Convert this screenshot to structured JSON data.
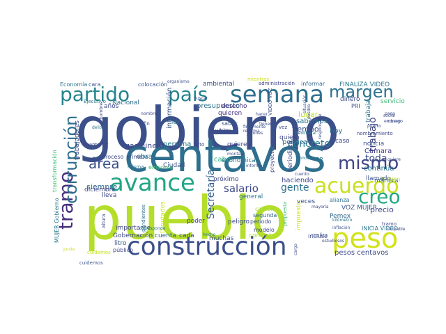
{
  "word_cloud": {
    "words": [
      {
        "text": "gobierno",
        "color": "#3b4f8a"
      },
      {
        "text": "pueblo",
        "color": "#b5de2b"
      },
      {
        "text": "centavos",
        "color": "#2e6e8e"
      },
      {
        "text": "construcción",
        "color": "#3b4f8a"
      },
      {
        "text": "peso",
        "color": "#d2e21b"
      },
      {
        "text": "semana",
        "color": "#2e6e8e"
      },
      {
        "text": "avance",
        "color": "#21a585"
      },
      {
        "text": "acuerdo",
        "color": "#c8e020"
      },
      {
        "text": "partido",
        "color": "#25858e"
      },
      {
        "text": "país",
        "color": "#25848e"
      },
      {
        "text": "margen",
        "color": "#2c718e"
      },
      {
        "text": "mismo",
        "color": "#404387"
      },
      {
        "text": "creo",
        "color": "#22a884"
      },
      {
        "text": "tramo",
        "color": "#472f7d"
      },
      {
        "text": "corrupción",
        "color": "#2e6e8e"
      },
      {
        "text": "área",
        "color": "#3b518b"
      },
      {
        "text": "salario",
        "color": "#3e4a89"
      },
      {
        "text": "gente",
        "color": "#2c728e"
      },
      {
        "text": "trabajo",
        "color": "#3f4788"
      },
      {
        "text": "toda",
        "color": "#3c4f8a"
      },
      {
        "text": "concreto",
        "color": "#26818e"
      },
      {
        "text": "Secretaría",
        "color": "#34608d"
      },
      {
        "text": "tiempo",
        "color": "#3b528b"
      },
      {
        "text": "sabemos",
        "color": "#2a768e"
      },
      {
        "text": "lugar",
        "color": "#c0df25"
      },
      {
        "text": "siempre",
        "color": "#2f6b8e"
      },
      {
        "text": "información",
        "color": "#38598c"
      },
      {
        "text": "presupuesto",
        "color": "#2c728e"
      },
      {
        "text": "derecho",
        "color": "#46327e"
      },
      {
        "text": "quieren",
        "color": "#453581"
      },
      {
        "text": "Nacional",
        "color": "#2d708e"
      },
      {
        "text": "gasolinera",
        "color": "#3e4989"
      },
      {
        "text": "persona",
        "color": "#2a778e"
      },
      {
        "text": "política",
        "color": "#31688e"
      },
      {
        "text": "caso",
        "color": "#3f4788"
      },
      {
        "text": "noticia",
        "color": "#3b528b"
      },
      {
        "text": "Cámara",
        "color": "#433e85"
      },
      {
        "text": "continúa",
        "color": "#2a778e"
      },
      {
        "text": "manera",
        "color": "#2c728e"
      },
      {
        "text": "haciendo",
        "color": "#3f4788"
      },
      {
        "text": "pesos centavos",
        "color": "#3e4989"
      },
      {
        "text": "precio",
        "color": "#3f4788"
      },
      {
        "text": "VOZ MUJER",
        "color": "#3a548c"
      },
      {
        "text": "Pemex",
        "color": "#31668e"
      },
      {
        "text": "muchas",
        "color": "#3a538b"
      },
      {
        "text": "contrato",
        "color": "#b2dd2d"
      },
      {
        "text": "Gobernación",
        "color": "#3e4989"
      },
      {
        "text": "cuenta",
        "color": "#31688e"
      },
      {
        "text": "cada",
        "color": "#3e4a89"
      },
      {
        "text": "poder",
        "color": "#3f4788"
      },
      {
        "text": "importante",
        "color": "#3f4889"
      },
      {
        "text": "litro",
        "color": "#38598c"
      },
      {
        "text": "público",
        "color": "#3e4989"
      },
      {
        "text": "cuidemos",
        "color": "#c2df23"
      },
      {
        "text": "diciembre",
        "color": "#3e4a89"
      },
      {
        "text": "Ciudad",
        "color": "#3b528b"
      },
      {
        "text": "misma",
        "color": "#2c728e"
      },
      {
        "text": "económica",
        "color": "#2a778e"
      },
      {
        "text": "próximo",
        "color": "#3f4788"
      },
      {
        "text": "cabo",
        "color": "#28ae80"
      },
      {
        "text": "general",
        "color": "#2a788e"
      },
      {
        "text": "periodo",
        "color": "#3b528b"
      },
      {
        "text": "modelo",
        "color": "#3e4a89"
      },
      {
        "text": "segunda",
        "color": "#31688e"
      },
      {
        "text": "peligro",
        "color": "#3e4a89"
      },
      {
        "text": "cambio",
        "color": "#a8db34"
      },
      {
        "text": "impuesto",
        "color": "#cfe11c"
      },
      {
        "text": "incluso",
        "color": "#3f4788"
      },
      {
        "text": "alianza",
        "color": "#2c718e"
      },
      {
        "text": "mayoría",
        "color": "#3e4a89"
      },
      {
        "text": "kilómetro",
        "color": "#2a768e"
      },
      {
        "text": "hoy",
        "color": "#2e6e8e"
      },
      {
        "text": "nombramiento",
        "color": "#3e4a89"
      },
      {
        "text": "llamado",
        "color": "#3b528b"
      },
      {
        "text": "bien",
        "color": "#c2df23"
      },
      {
        "text": "FINALIZA VIDEO",
        "color": "#2a788e"
      },
      {
        "text": "INICIA VIDEO",
        "color": "#2a788e"
      },
      {
        "text": "servicio",
        "color": "#3ebc74"
      },
      {
        "text": "dinero",
        "color": "#3e4a89"
      },
      {
        "text": "PRI",
        "color": "#3e4a89"
      },
      {
        "text": "informar",
        "color": "#31688e"
      },
      {
        "text": "administración",
        "color": "#3f4788"
      },
      {
        "text": "ambiental",
        "color": "#3b528b"
      },
      {
        "text": "colocación",
        "color": "#3a548c"
      },
      {
        "text": "Economía",
        "color": "#2a788e"
      },
      {
        "text": "cara",
        "color": "#3b528b"
      },
      {
        "text": "años",
        "color": "#3e4a89"
      },
      {
        "text": "trabajadores",
        "color": "#3e4a89"
      },
      {
        "text": "ley",
        "color": "#2a788e"
      },
      {
        "text": "fin",
        "color": "#3b528b"
      },
      {
        "text": "nueva",
        "color": "#3e4a89"
      },
      {
        "text": "saber",
        "color": "#3b528b"
      },
      {
        "text": "hizo",
        "color": "#3e4a89"
      },
      {
        "text": "vez",
        "color": "#3f4788"
      },
      {
        "text": "quiero",
        "color": "#3e4a89"
      },
      {
        "text": "obra",
        "color": "#2c718e"
      },
      {
        "text": "empresa",
        "color": "#3ebc74"
      },
      {
        "text": "proceso",
        "color": "#3e4a89"
      },
      {
        "text": "primera",
        "color": "#3b528b"
      },
      {
        "text": "lleva",
        "color": "#3f4788"
      },
      {
        "text": "altura",
        "color": "#3e4a89"
      },
      {
        "text": "pendientes",
        "color": "#2c718e"
      },
      {
        "text": "Diputados",
        "color": "#cfe11c"
      },
      {
        "text": "trabaja",
        "color": "#2a788e"
      },
      {
        "text": "quieren",
        "color": "#3f4788"
      },
      {
        "text": "tramo",
        "color": "#3e4a89"
      },
      {
        "text": "veces",
        "color": "#3b528b"
      },
      {
        "text": "proyecto",
        "color": "#3e4a89"
      },
      {
        "text": "realiza",
        "color": "#3b528b"
      },
      {
        "text": "periodista",
        "color": "#3e4a89"
      },
      {
        "text": "MUJER Gobierno",
        "color": "#2a788e"
      },
      {
        "text": "transformación",
        "color": "#3ebc74"
      },
      {
        "text": "cuidemos",
        "color": "#3b528b"
      },
      {
        "text": "mantener",
        "color": "#3e4a89"
      },
      {
        "text": "Ejecutivo",
        "color": "#2a788e"
      },
      {
        "text": "puerto",
        "color": "#3e4a89"
      },
      {
        "text": "social",
        "color": "#3b528b"
      },
      {
        "text": "embargo",
        "color": "#3e4a89"
      },
      {
        "text": "inflación",
        "color": "#3b528b"
      },
      {
        "text": "estudiosos",
        "color": "#3e4a89"
      },
      {
        "text": "conocer",
        "color": "#2a788e"
      },
      {
        "text": "buscar",
        "color": "#3b528b"
      },
      {
        "text": "reforma",
        "color": "#3e4a89"
      },
      {
        "text": "finalmente",
        "color": "#3b528b"
      },
      {
        "text": "jóvenes",
        "color": "#3e4a89"
      },
      {
        "text": "neoliberal",
        "color": "#2a788e"
      },
      {
        "text": "alto",
        "color": "#3e4a89"
      },
      {
        "text": "informe",
        "color": "#3b528b"
      },
      {
        "text": "cuento",
        "color": "#3e4a89"
      },
      {
        "text": "delito",
        "color": "#2a788e"
      },
      {
        "text": "organismo",
        "color": "#3b528b"
      },
      {
        "text": "pago",
        "color": "#3e4a89"
      },
      {
        "text": "correo",
        "color": "#3b528b"
      },
      {
        "text": "poste",
        "color": "#cfe11c"
      },
      {
        "text": "culpable",
        "color": "#3e4a89"
      },
      {
        "text": "corresponde",
        "color": "#2a788e"
      },
      {
        "text": "montaje",
        "color": "#3b528b"
      },
      {
        "text": "responsable",
        "color": "#3e4a89"
      },
      {
        "text": "posible",
        "color": "#3b528b"
      },
      {
        "text": "hombre",
        "color": "#3e4a89"
      },
      {
        "text": "mientras",
        "color": "#cfe11c"
      },
      {
        "text": "propuesta",
        "color": "#3ebc74"
      },
      {
        "text": "hecho",
        "color": "#2a788e"
      },
      {
        "text": "cargo",
        "color": "#3e4a89"
      },
      {
        "text": "situación",
        "color": "#3b528b"
      },
      {
        "text": "hacer",
        "color": "#3e4a89"
      },
      {
        "text": "BP",
        "color": "#2a788e"
      },
      {
        "text": "tienen",
        "color": "#3e4a89"
      },
      {
        "text": "quiere",
        "color": "#3b528b"
      },
      {
        "text": "nombre",
        "color": "#3e4a89"
      },
      {
        "text": "VIDEO VOZ",
        "color": "#3b528b"
      }
    ]
  }
}
